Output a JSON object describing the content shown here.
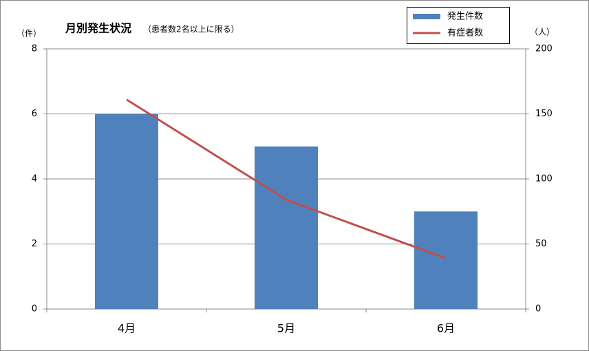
{
  "chart_data": {
    "type": "bar-line",
    "title": "月別発生状況",
    "subtitle": "（患者数2名以上に限る）",
    "y_label": "（件）",
    "y2_label": "（人）",
    "categories": [
      "4月",
      "5月",
      "6月"
    ],
    "series": [
      {
        "name": "発生件数",
        "type": "bar",
        "color": "#4f81bd",
        "values": [
          6,
          5,
          3
        ]
      },
      {
        "name": "有症者数",
        "type": "line",
        "color": "#c0504d",
        "axis": "y2",
        "values": [
          161,
          84,
          39
        ]
      }
    ],
    "ylim": [
      0,
      8
    ],
    "yticks": [
      0,
      2,
      4,
      6,
      8
    ],
    "y2lim": [
      0,
      200
    ],
    "y2ticks": [
      0,
      50,
      100,
      150,
      200
    ],
    "grid": true,
    "legend": "top-right"
  }
}
